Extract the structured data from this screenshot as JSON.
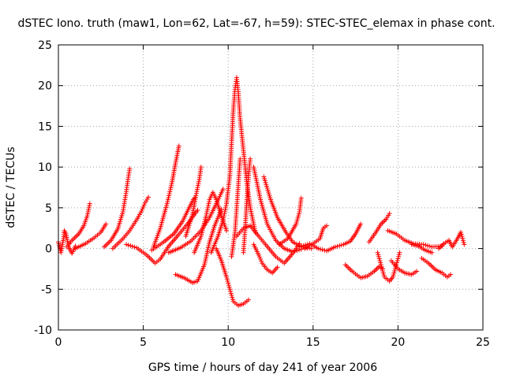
{
  "chart_data": {
    "type": "scatter",
    "title": "dSTEC Iono. truth (maw1, Lon=62, Lat=-67, h=59): STEC-STEC_elemax in phase cont.",
    "xlabel": "GPS time / hours of day 241 of year 2006",
    "ylabel": "dSTEC  / TECUs",
    "xlim": [
      0,
      25
    ],
    "ylim": [
      -10,
      25
    ],
    "xticks": [
      0,
      5,
      10,
      15,
      20,
      25
    ],
    "yticks": [
      -10,
      -5,
      0,
      5,
      10,
      15,
      20,
      25
    ],
    "grid": true,
    "marker": "plus",
    "color": "#ff0000",
    "series": [
      {
        "points": [
          [
            0.0,
            0.8
          ],
          [
            0.15,
            -0.5
          ],
          [
            0.3,
            1.2
          ],
          [
            0.35,
            2.2
          ],
          [
            0.45,
            1.8
          ],
          [
            0.6,
            0.2
          ],
          [
            0.8,
            -0.6
          ],
          [
            1.0,
            0.3
          ]
        ]
      },
      {
        "points": [
          [
            0.5,
            0.2
          ],
          [
            0.8,
            1.0
          ],
          [
            1.2,
            1.8
          ],
          [
            1.5,
            2.8
          ],
          [
            1.7,
            4.0
          ],
          [
            1.85,
            5.5
          ]
        ]
      },
      {
        "points": [
          [
            1.0,
            0.0
          ],
          [
            1.6,
            0.6
          ],
          [
            2.1,
            1.3
          ],
          [
            2.5,
            2.0
          ],
          [
            2.8,
            3.0
          ]
        ]
      },
      {
        "points": [
          [
            2.7,
            0.2
          ],
          [
            3.1,
            1.0
          ],
          [
            3.5,
            2.4
          ],
          [
            3.8,
            4.5
          ],
          [
            4.0,
            7.0
          ],
          [
            4.1,
            8.5
          ],
          [
            4.2,
            9.8
          ]
        ]
      },
      {
        "points": [
          [
            3.2,
            0.0
          ],
          [
            3.8,
            1.2
          ],
          [
            4.2,
            2.2
          ],
          [
            4.6,
            3.5
          ],
          [
            4.9,
            4.6
          ],
          [
            5.1,
            5.6
          ],
          [
            5.3,
            6.3
          ]
        ]
      },
      {
        "points": [
          [
            4.0,
            0.5
          ],
          [
            4.6,
            0.1
          ],
          [
            5.2,
            -0.8
          ],
          [
            5.7,
            -1.8
          ],
          [
            6.0,
            -1.3
          ],
          [
            6.5,
            0.3
          ],
          [
            7.0,
            1.5
          ],
          [
            7.6,
            3.0
          ],
          [
            8.2,
            4.7
          ]
        ]
      },
      {
        "points": [
          [
            5.6,
            0.2
          ],
          [
            6.0,
            2.5
          ],
          [
            6.4,
            5.5
          ],
          [
            6.7,
            8.2
          ],
          [
            6.9,
            10.5
          ],
          [
            7.1,
            12.6
          ]
        ]
      },
      {
        "points": [
          [
            5.5,
            -0.2
          ],
          [
            6.2,
            0.8
          ],
          [
            6.8,
            1.8
          ],
          [
            7.3,
            3.3
          ],
          [
            7.7,
            5.0
          ],
          [
            8.0,
            6.2
          ]
        ]
      },
      {
        "points": [
          [
            6.5,
            -0.5
          ],
          [
            7.2,
            0.1
          ],
          [
            7.8,
            0.9
          ],
          [
            8.4,
            2.2
          ],
          [
            8.9,
            3.8
          ],
          [
            9.3,
            5.5
          ],
          [
            9.7,
            7.3
          ]
        ]
      },
      {
        "points": [
          [
            7.5,
            1.5
          ],
          [
            7.9,
            4.2
          ],
          [
            8.1,
            6.5
          ],
          [
            8.3,
            8.5
          ],
          [
            8.4,
            10.0
          ]
        ]
      },
      {
        "points": [
          [
            8.0,
            -0.5
          ],
          [
            8.4,
            1.5
          ],
          [
            8.7,
            4.0
          ],
          [
            8.9,
            6.0
          ],
          [
            9.1,
            6.9
          ],
          [
            9.3,
            6.0
          ],
          [
            9.6,
            4.0
          ],
          [
            9.9,
            2.2
          ]
        ]
      },
      {
        "points": [
          [
            6.9,
            -3.2
          ],
          [
            7.4,
            -3.6
          ],
          [
            7.9,
            -4.2
          ],
          [
            8.2,
            -4.0
          ],
          [
            8.6,
            -2.0
          ],
          [
            8.9,
            0.8
          ],
          [
            9.2,
            2.8
          ],
          [
            9.6,
            4.8
          ]
        ]
      },
      {
        "points": [
          [
            9.0,
            -0.5
          ],
          [
            9.4,
            1.5
          ],
          [
            9.7,
            3.5
          ],
          [
            9.9,
            5.5
          ],
          [
            10.1,
            9.0
          ],
          [
            10.2,
            13.0
          ],
          [
            10.3,
            17.0
          ],
          [
            10.4,
            19.5
          ],
          [
            10.5,
            21.0
          ],
          [
            10.6,
            19.0
          ],
          [
            10.7,
            16.0
          ],
          [
            10.9,
            12.0
          ],
          [
            11.1,
            8.0
          ],
          [
            11.3,
            5.0
          ],
          [
            11.6,
            2.0
          ]
        ]
      },
      {
        "points": [
          [
            9.3,
            0.0
          ],
          [
            9.6,
            -1.5
          ],
          [
            9.9,
            -3.5
          ],
          [
            10.1,
            -5.0
          ],
          [
            10.3,
            -6.5
          ],
          [
            10.6,
            -7.0
          ],
          [
            10.9,
            -6.8
          ],
          [
            11.2,
            -6.3
          ]
        ]
      },
      {
        "points": [
          [
            10.2,
            -1.0
          ],
          [
            10.4,
            2.0
          ],
          [
            10.5,
            5.0
          ],
          [
            10.6,
            8.0
          ],
          [
            10.7,
            11.0
          ]
        ]
      },
      {
        "points": [
          [
            10.9,
            -0.5
          ],
          [
            11.0,
            2.5
          ],
          [
            11.1,
            6.0
          ],
          [
            11.2,
            9.0
          ],
          [
            11.3,
            11.0
          ]
        ]
      },
      {
        "points": [
          [
            10.5,
            1.5
          ],
          [
            10.9,
            2.5
          ],
          [
            11.3,
            2.8
          ],
          [
            11.8,
            1.5
          ],
          [
            12.2,
            0.5
          ],
          [
            12.8,
            -1.0
          ],
          [
            13.3,
            -1.8
          ],
          [
            13.8,
            -0.6
          ],
          [
            14.2,
            0.6
          ]
        ]
      },
      {
        "points": [
          [
            11.5,
            0.5
          ],
          [
            11.8,
            -0.8
          ],
          [
            12.0,
            -1.8
          ],
          [
            12.3,
            -2.6
          ],
          [
            12.6,
            -3.0
          ],
          [
            12.9,
            -2.3
          ]
        ]
      },
      {
        "points": [
          [
            11.5,
            10.0
          ],
          [
            11.9,
            6.0
          ],
          [
            12.3,
            3.0
          ],
          [
            12.8,
            1.0
          ],
          [
            13.3,
            0.0
          ],
          [
            13.8,
            -0.4
          ],
          [
            14.3,
            -0.1
          ]
        ]
      },
      {
        "points": [
          [
            12.1,
            8.8
          ],
          [
            12.5,
            6.0
          ],
          [
            12.9,
            3.8
          ],
          [
            13.4,
            2.0
          ],
          [
            13.8,
            0.8
          ],
          [
            14.3,
            0.2
          ],
          [
            14.9,
            0.0
          ]
        ]
      },
      {
        "points": [
          [
            13.0,
            0.5
          ],
          [
            13.5,
            1.2
          ],
          [
            14.0,
            3.0
          ],
          [
            14.2,
            4.5
          ],
          [
            14.3,
            6.2
          ]
        ]
      },
      {
        "points": [
          [
            14.2,
            0.2
          ],
          [
            14.8,
            0.6
          ],
          [
            15.3,
            0.0
          ],
          [
            15.8,
            -0.3
          ],
          [
            16.3,
            0.2
          ],
          [
            16.8,
            0.5
          ],
          [
            17.2,
            0.9
          ],
          [
            17.5,
            1.8
          ],
          [
            17.8,
            3.0
          ]
        ]
      },
      {
        "points": [
          [
            14.5,
            0.0
          ],
          [
            15.0,
            0.6
          ],
          [
            15.4,
            1.2
          ],
          [
            15.6,
            2.5
          ],
          [
            15.8,
            2.8
          ]
        ]
      },
      {
        "points": [
          [
            16.9,
            -2.0
          ],
          [
            17.3,
            -2.8
          ],
          [
            17.8,
            -3.6
          ],
          [
            18.2,
            -3.4
          ],
          [
            18.6,
            -2.8
          ],
          [
            18.9,
            -2.2
          ],
          [
            19.1,
            -2.5
          ]
        ]
      },
      {
        "points": [
          [
            18.8,
            -0.5
          ],
          [
            19.0,
            -2.0
          ],
          [
            19.2,
            -3.5
          ],
          [
            19.5,
            -4.0
          ],
          [
            19.7,
            -3.5
          ],
          [
            19.9,
            -2.0
          ],
          [
            20.1,
            -0.5
          ]
        ]
      },
      {
        "points": [
          [
            19.6,
            -1.5
          ],
          [
            20.0,
            -2.5
          ],
          [
            20.4,
            -3.0
          ],
          [
            20.8,
            -3.2
          ],
          [
            21.1,
            -2.8
          ]
        ]
      },
      {
        "points": [
          [
            18.3,
            0.8
          ],
          [
            18.7,
            2.0
          ],
          [
            19.0,
            3.0
          ],
          [
            19.3,
            3.6
          ],
          [
            19.5,
            4.3
          ]
        ]
      },
      {
        "points": [
          [
            19.4,
            2.2
          ],
          [
            19.9,
            1.8
          ],
          [
            20.4,
            1.0
          ],
          [
            20.9,
            0.6
          ],
          [
            21.5,
            0.5
          ],
          [
            22.0,
            0.2
          ],
          [
            22.6,
            0.3
          ]
        ]
      },
      {
        "points": [
          [
            21.4,
            -1.2
          ],
          [
            21.8,
            -1.8
          ],
          [
            22.2,
            -2.6
          ],
          [
            22.6,
            -3.0
          ],
          [
            22.9,
            -3.5
          ],
          [
            23.1,
            -3.2
          ]
        ]
      },
      {
        "points": [
          [
            22.4,
            0.0
          ],
          [
            22.7,
            0.6
          ],
          [
            23.0,
            1.0
          ],
          [
            23.2,
            0.2
          ],
          [
            23.5,
            1.2
          ],
          [
            23.7,
            2.0
          ],
          [
            23.9,
            0.5
          ]
        ]
      },
      {
        "points": [
          [
            20.8,
            0.5
          ],
          [
            21.2,
            0.3
          ],
          [
            21.6,
            -0.2
          ],
          [
            22.0,
            -0.5
          ]
        ]
      }
    ]
  }
}
